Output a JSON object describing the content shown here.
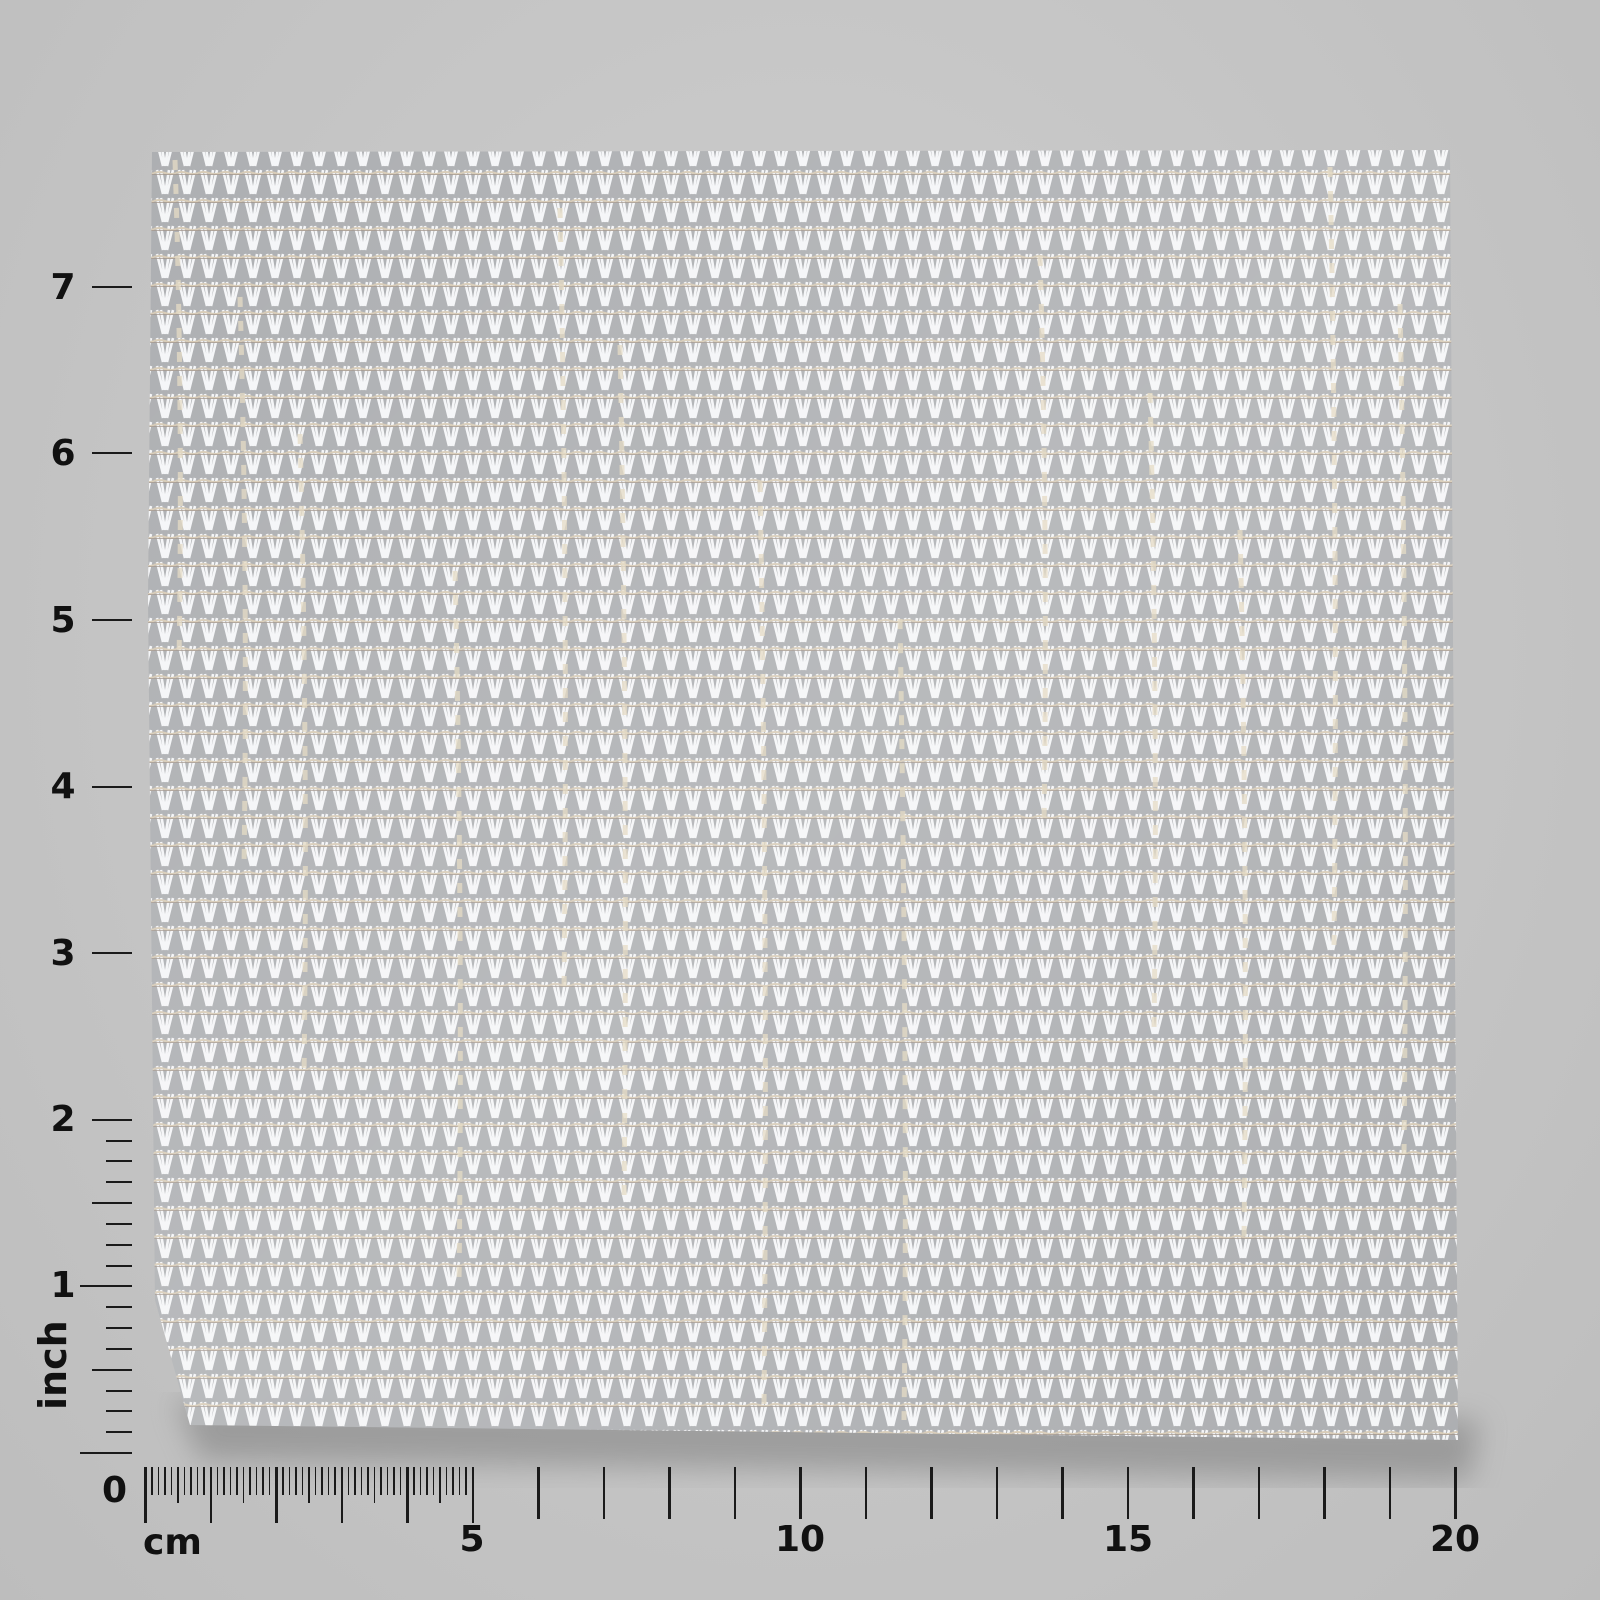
{
  "image": {
    "subject": "fabric-swatch",
    "colors": {
      "background": "#c6c6c6",
      "fabric_white": "#f2f3f5",
      "thread_beige": "#d9cdb8",
      "ruler": "#1a1a1a"
    }
  },
  "rulers": {
    "vertical": {
      "unit_label": "inch",
      "tick_labels": [
        "1",
        "2",
        "3",
        "4",
        "5",
        "6",
        "7"
      ]
    },
    "origin_label": "0",
    "horizontal": {
      "unit_label": "cm",
      "tick_labels": [
        "5",
        "10",
        "15",
        "20"
      ]
    }
  }
}
